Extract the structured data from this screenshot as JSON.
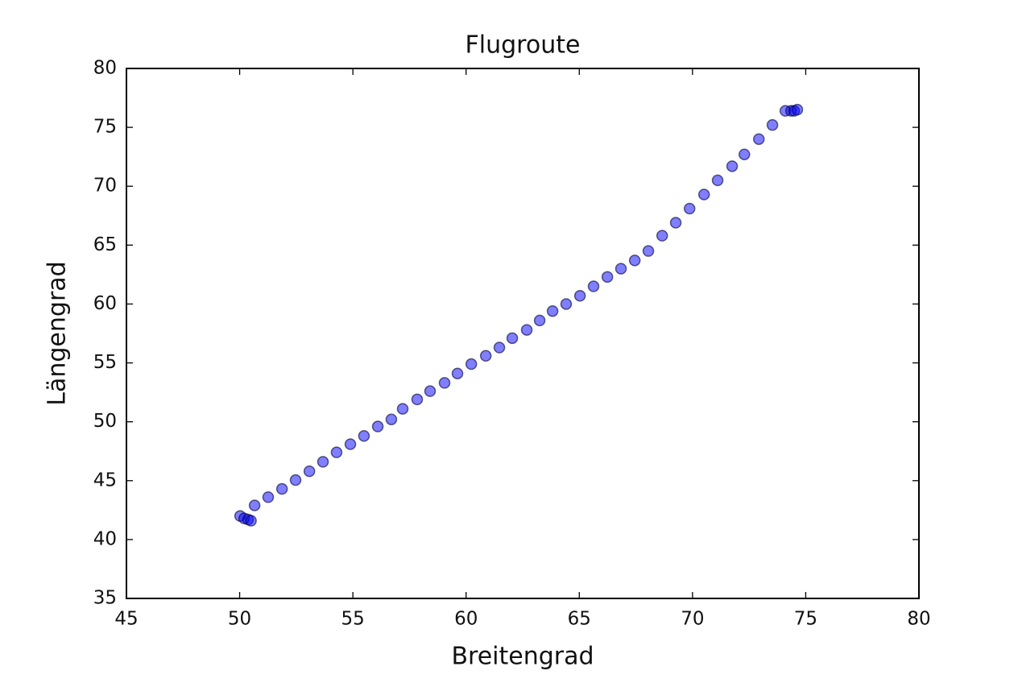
{
  "chart_data": {
    "type": "scatter",
    "title": "Flugroute",
    "xlabel": "Breitengrad",
    "ylabel": "Längengrad",
    "x": [
      50.02,
      50.2,
      50.37,
      50.5,
      50.66,
      51.26,
      51.87,
      52.47,
      53.08,
      53.68,
      54.28,
      54.89,
      55.49,
      56.1,
      56.7,
      57.2,
      57.84,
      58.41,
      59.05,
      59.62,
      60.23,
      60.87,
      61.47,
      62.04,
      62.68,
      63.25,
      63.82,
      64.42,
      65.03,
      65.63,
      66.24,
      66.84,
      67.45,
      68.05,
      68.66,
      69.26,
      69.87,
      70.51,
      71.11,
      71.75,
      72.29,
      72.93,
      73.53,
      74.1,
      74.35,
      74.49,
      74.63
    ],
    "values": [
      42.0,
      41.8,
      41.7,
      41.6,
      42.9,
      43.6,
      44.3,
      45.05,
      45.8,
      46.6,
      47.4,
      48.1,
      48.8,
      49.6,
      50.2,
      51.1,
      51.9,
      52.6,
      53.3,
      54.1,
      54.9,
      55.6,
      56.3,
      57.1,
      57.8,
      58.6,
      59.4,
      60.0,
      60.7,
      61.5,
      62.3,
      63.0,
      63.7,
      64.5,
      65.8,
      66.9,
      68.1,
      69.3,
      70.5,
      71.7,
      72.7,
      74.0,
      75.2,
      76.4,
      76.4,
      76.4,
      76.5
    ],
    "color": "#0000ff",
    "xlim": [
      45,
      80
    ],
    "ylim": [
      35,
      80
    ],
    "xticks": [
      45,
      50,
      55,
      60,
      65,
      70,
      75,
      80
    ],
    "yticks": [
      35,
      40,
      45,
      50,
      55,
      60,
      65,
      70,
      75,
      80
    ],
    "grid": false
  }
}
